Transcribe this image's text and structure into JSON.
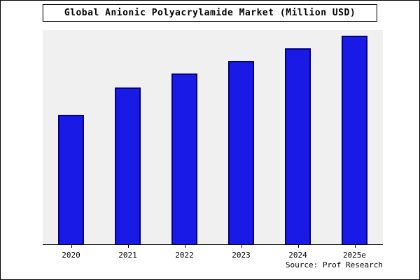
{
  "title": "Global Anionic Polyacrylamide Market (Million USD)",
  "source": "Source: Prof Research",
  "colors": {
    "bar_fill": "#1a1ae6",
    "bar_edge": "#000080",
    "plot_bg": "#f0f0f0",
    "figure_bg": "#ffffff"
  },
  "chart_data": {
    "type": "bar",
    "title": "Global Anionic Polyacrylamide Market (Million USD)",
    "categories": [
      "2020",
      "2021",
      "2022",
      "2023",
      "2024",
      "2025e"
    ],
    "values": [
      62,
      75,
      82,
      88,
      94,
      100
    ],
    "xlabel": "",
    "ylabel": "",
    "ylim": [
      0,
      100
    ],
    "grid": false,
    "legend": false
  }
}
